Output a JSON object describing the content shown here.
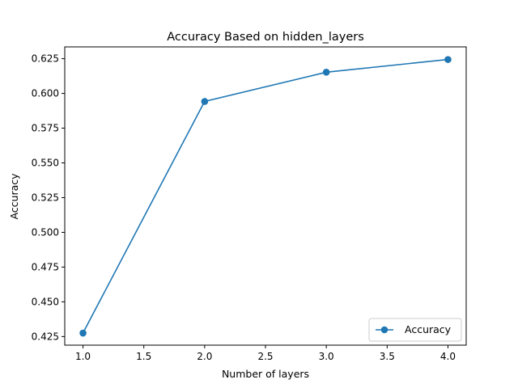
{
  "chart_data": {
    "type": "line",
    "title": "Accuracy Based on hidden_layers",
    "xlabel": "Number of layers",
    "ylabel": "Accuracy",
    "x": [
      1.0,
      2.0,
      3.0,
      4.0
    ],
    "series": [
      {
        "name": "Accuracy",
        "values": [
          0.4275,
          0.5942,
          0.6153,
          0.6244
        ],
        "color": "#1f77b4",
        "marker": "circle"
      }
    ],
    "xlim": [
      0.85,
      4.15
    ],
    "ylim": [
      0.4188,
      0.6335
    ],
    "xticks": [
      1.0,
      1.5,
      2.0,
      2.5,
      3.0,
      3.5,
      4.0
    ],
    "xtick_labels": [
      "1.0",
      "1.5",
      "2.0",
      "2.5",
      "3.0",
      "3.5",
      "4.0"
    ],
    "yticks": [
      0.425,
      0.45,
      0.475,
      0.5,
      0.525,
      0.55,
      0.575,
      0.6,
      0.625
    ],
    "ytick_labels": [
      "0.425",
      "0.450",
      "0.475",
      "0.500",
      "0.525",
      "0.550",
      "0.575",
      "0.600",
      "0.625"
    ],
    "grid": false,
    "legend": {
      "placement": "lower-right",
      "entries": [
        "Accuracy"
      ]
    }
  }
}
